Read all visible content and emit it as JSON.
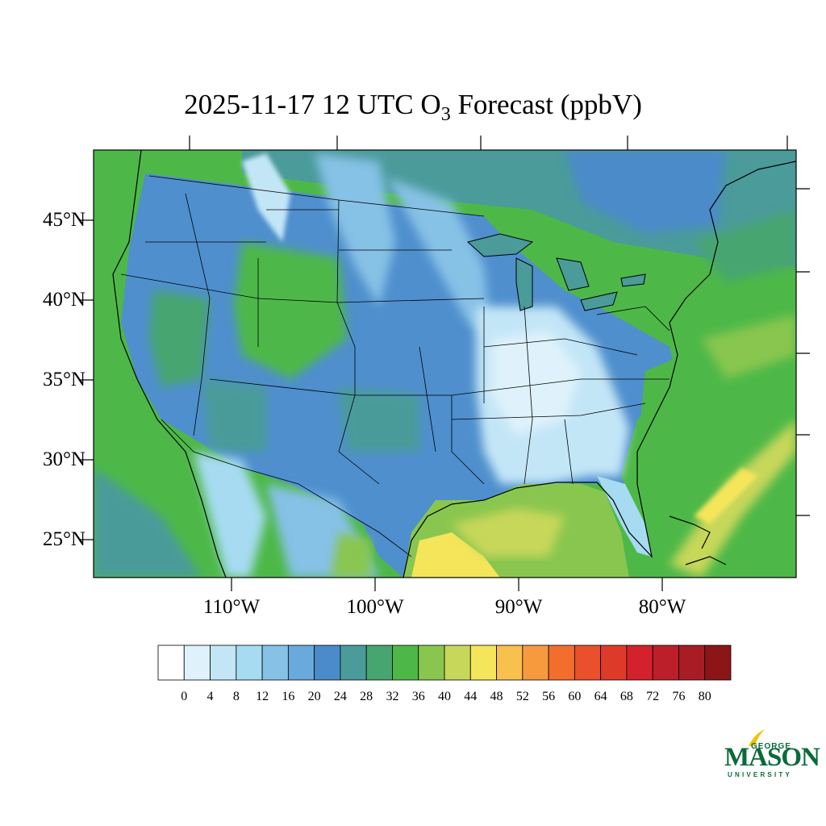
{
  "title": {
    "prefix": "2025-11-17 12 UTC O",
    "subscript": "3",
    "suffix": " Forecast (ppbV)"
  },
  "map": {
    "latitude_labels": [
      "45°N",
      "40°N",
      "35°N",
      "30°N",
      "25°N"
    ],
    "latitude_values": [
      45,
      40,
      35,
      30,
      25
    ],
    "longitude_labels": [
      "110°W",
      "100°W",
      "90°W",
      "80°W"
    ],
    "longitude_values": [
      -110,
      -100,
      -90,
      -80
    ],
    "region": "Continental United States",
    "colors": {
      "ocean_pacific": "#4db848",
      "ocean_atlantic": "#4db848",
      "gulf": "#89c64f",
      "gulf_high": "#f5e55a",
      "atlantic_high": "#c7d75a",
      "canada_north": "#4aa09a",
      "plains": "#4f8fcd",
      "mountains_low": "#a6dbf1",
      "southeast_low": "#c3e6f7",
      "west_mid": "#4db848",
      "border_lines": "#000000"
    }
  },
  "colorbar": {
    "ticks": [
      "0",
      "4",
      "8",
      "12",
      "16",
      "20",
      "24",
      "28",
      "32",
      "36",
      "40",
      "44",
      "48",
      "52",
      "56",
      "60",
      "64",
      "68",
      "72",
      "76",
      "80"
    ],
    "colors": [
      "#ffffff",
      "#dff2fb",
      "#c3e6f7",
      "#a6dbf1",
      "#86c1e6",
      "#6aa9dc",
      "#4c8bc9",
      "#4a9b9a",
      "#47a56f",
      "#4db848",
      "#89c64f",
      "#c7d75a",
      "#f5e55a",
      "#f8c04c",
      "#f79a3d",
      "#f36e2d",
      "#e9502b",
      "#de3a2a",
      "#d3222c",
      "#bd1f2a",
      "#a81c25",
      "#8c1518"
    ]
  },
  "logo": {
    "line1": "GEORGE",
    "line2": "MASON",
    "line3": "UNIVERSITY",
    "color": "#0a6b3a",
    "accent": "#f2c200"
  }
}
